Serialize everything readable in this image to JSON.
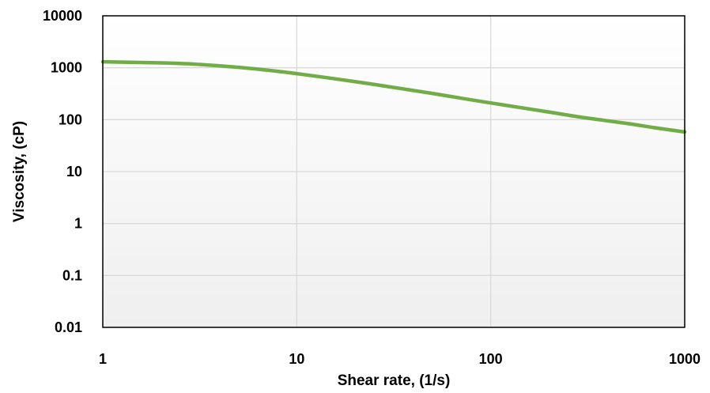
{
  "chart_data": {
    "type": "line",
    "xlabel": "Shear rate, (1/s)",
    "ylabel": "Viscosity, (cP)",
    "x_scale": "log",
    "y_scale": "log",
    "xlim": [
      1,
      1000
    ],
    "ylim": [
      0.01,
      10000
    ],
    "x_ticks": [
      "1",
      "10",
      "100",
      "1000"
    ],
    "y_ticks": [
      "0.01",
      "0.1",
      "1",
      "10",
      "100",
      "1000",
      "10000"
    ],
    "grid": true,
    "legend": "none",
    "series": [
      {
        "color": "#70ad47",
        "x": [
          1,
          2,
          3,
          5,
          7,
          10,
          20,
          30,
          50,
          70,
          100,
          200,
          300,
          500,
          700,
          1000
        ],
        "y": [
          1300,
          1240,
          1170,
          1020,
          900,
          770,
          540,
          430,
          320,
          260,
          210,
          140,
          110,
          85,
          70,
          58
        ]
      }
    ]
  }
}
